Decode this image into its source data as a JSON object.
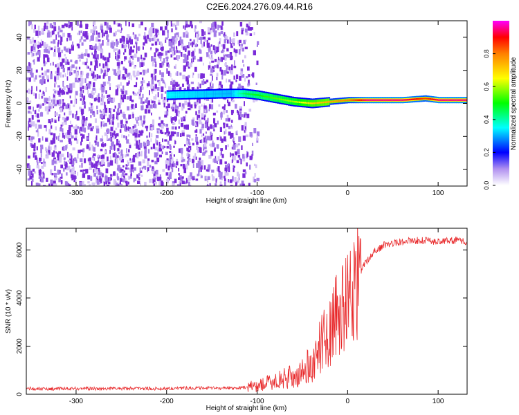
{
  "title": "C2E6.2024.276.09.44.R16",
  "colors": {
    "snr_line": "#e8282a",
    "spectrogram_noise": "#7a2bd9",
    "axis": "#000000"
  },
  "chart_data": [
    {
      "type": "heatmap",
      "xlabel": "Height of straight line (km)",
      "ylabel": "Frequency (Hz)",
      "xlim": [
        -355,
        132
      ],
      "ylim": [
        -50,
        50
      ],
      "x_ticks": [
        -300,
        -200,
        -100,
        0,
        100
      ],
      "x_tick_labels": [
        "-300",
        "-200",
        "-100",
        "0",
        "100"
      ],
      "y_ticks": [
        -40,
        -20,
        0,
        20,
        40
      ],
      "y_tick_labels": [
        "-40",
        "-20",
        "0",
        "20",
        "40"
      ],
      "colorbar": {
        "label": "Normalized spectral amplitude",
        "range": [
          0,
          1
        ],
        "ticks": [
          0.0,
          0.2,
          0.4,
          0.6,
          0.8
        ],
        "tick_labels": [
          "0.0",
          "0.2",
          "0.4",
          "0.6",
          "0.8"
        ]
      },
      "ridge": [
        {
          "x": -200,
          "freq": 5,
          "amp": 0.35
        },
        {
          "x": -130,
          "freq": 6,
          "amp": 0.3
        },
        {
          "x": -115,
          "freq": 6,
          "amp": 0.45
        },
        {
          "x": -100,
          "freq": 5,
          "amp": 0.5
        },
        {
          "x": -80,
          "freq": 3,
          "amp": 0.55
        },
        {
          "x": -60,
          "freq": 1,
          "amp": 0.6
        },
        {
          "x": -40,
          "freq": 0,
          "amp": 0.7
        },
        {
          "x": -20,
          "freq": 1,
          "amp": 0.75
        },
        {
          "x": 0,
          "freq": 2,
          "amp": 0.8
        },
        {
          "x": 20,
          "freq": 2,
          "amp": 0.95
        },
        {
          "x": 60,
          "freq": 2,
          "amp": 0.95
        },
        {
          "x": 85,
          "freq": 3,
          "amp": 0.85
        },
        {
          "x": 100,
          "freq": 2,
          "amp": 0.95
        },
        {
          "x": 132,
          "freq": 2,
          "amp": 0.95
        }
      ]
    },
    {
      "type": "line",
      "xlabel": "Height of straight line (km)",
      "ylabel": "SNR (10 * v/v)",
      "xlim": [
        -355,
        132
      ],
      "ylim": [
        0,
        6900
      ],
      "x_ticks": [
        -300,
        -200,
        -100,
        0,
        100
      ],
      "x_tick_labels": [
        "-300",
        "-200",
        "-100",
        "0",
        "100"
      ],
      "y_ticks": [
        0,
        2000,
        4000,
        6000
      ],
      "y_tick_labels": [
        "0",
        "2000",
        "4000",
        "6000"
      ],
      "series": [
        {
          "x": [
            -355,
            -330,
            -300,
            -270,
            -240,
            -210,
            -180,
            -150,
            -120,
            -110,
            -100,
            -90,
            -80,
            -70,
            -60,
            -55,
            -50,
            -45,
            -40,
            -35,
            -30,
            -25,
            -20,
            -15,
            -10,
            -5,
            0,
            5,
            10,
            15,
            20,
            30,
            40,
            60,
            80,
            100,
            120,
            132
          ],
          "y": [
            250,
            220,
            240,
            230,
            250,
            230,
            260,
            250,
            270,
            300,
            350,
            450,
            550,
            650,
            750,
            700,
            900,
            1200,
            1100,
            1600,
            2000,
            2400,
            2600,
            3000,
            3300,
            3600,
            3900,
            4300,
            4700,
            5100,
            5500,
            5950,
            6200,
            6350,
            6400,
            6350,
            6400,
            6300
          ]
        }
      ]
    }
  ]
}
